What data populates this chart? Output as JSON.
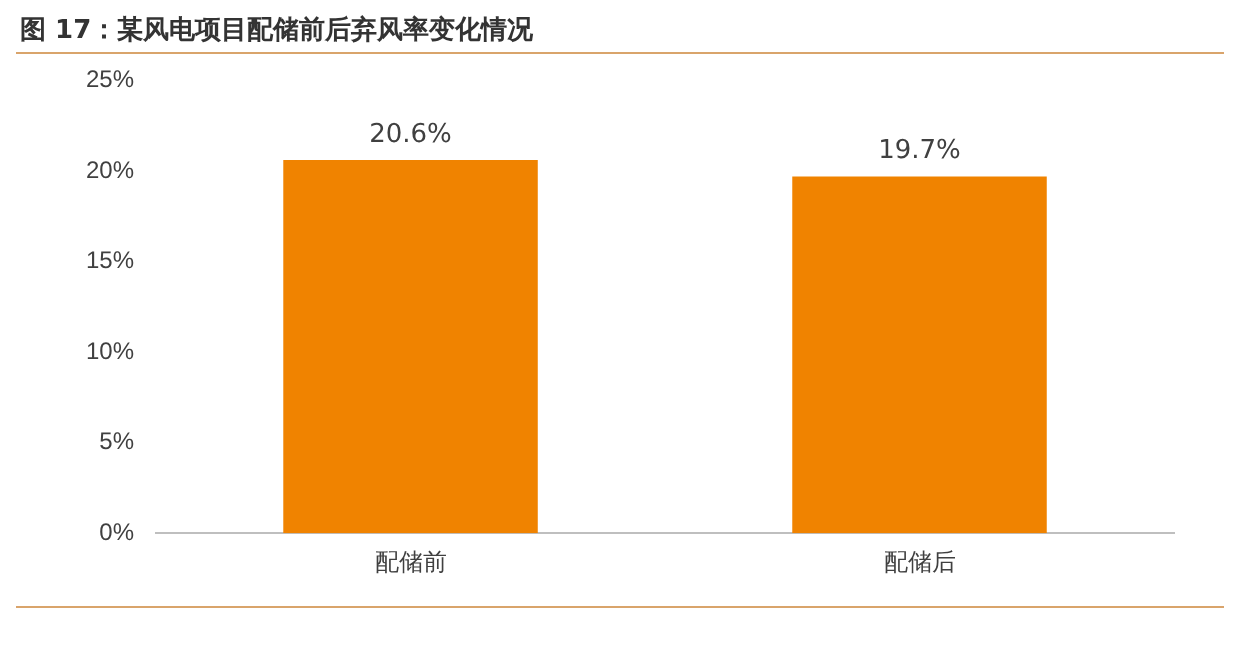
{
  "chart_data": {
    "type": "bar",
    "title": "图 17：某风电项目配储前后弃风率变化情况",
    "categories": [
      "配储前",
      "配储后"
    ],
    "values": [
      20.6,
      19.7
    ],
    "color": "#f08300",
    "value_labels": [
      "20.6%",
      "19.7%"
    ],
    "ylim": [
      0,
      25
    ],
    "yticks": [
      {
        "value": 0,
        "label": "0%"
      },
      {
        "value": 5,
        "label": "5%"
      },
      {
        "value": 10,
        "label": "10%"
      },
      {
        "value": 15,
        "label": "15%"
      },
      {
        "value": 20,
        "label": "20%"
      },
      {
        "value": 25,
        "label": "25%"
      }
    ],
    "grid": false,
    "legend": false
  }
}
